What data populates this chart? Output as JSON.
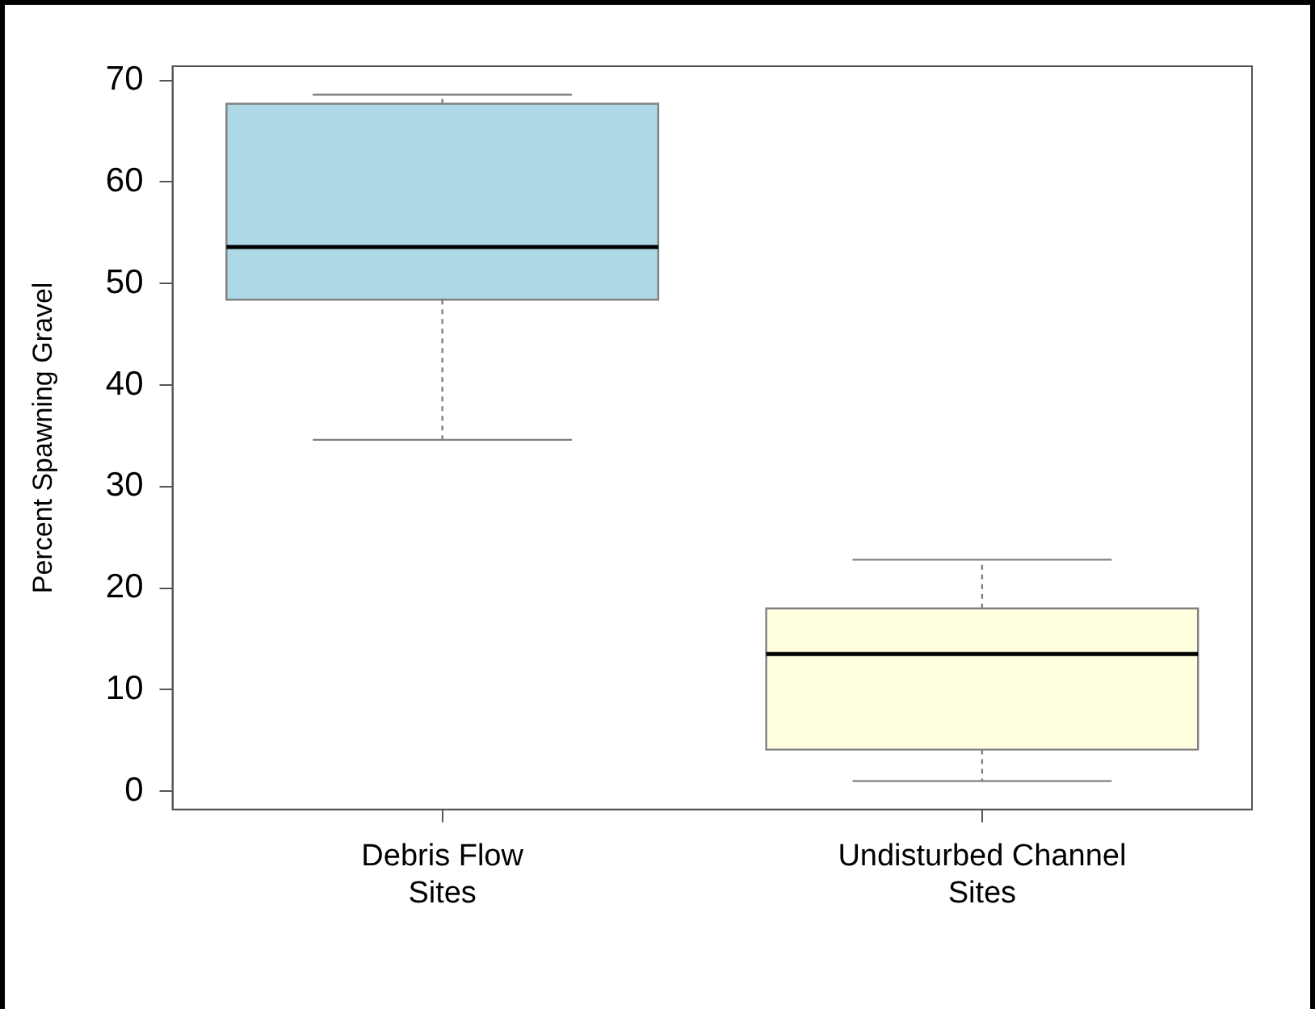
{
  "chart_data": {
    "type": "box",
    "ylabel": "Percent Spawning Gravel",
    "categories": [
      "Debris Flow Sites",
      "Undisturbed Channel Sites"
    ],
    "boxes": [
      {
        "low": 34.6,
        "q1": 48.4,
        "median": 53.6,
        "q3": 67.7,
        "high": 68.6
      },
      {
        "low": 1.0,
        "q1": 4.1,
        "median": 13.5,
        "q3": 18.0,
        "high": 22.8
      }
    ],
    "colors": [
      "#add8e6",
      "#ffffe0"
    ],
    "ylim": [
      -1.8,
      71.4
    ],
    "yticks": [
      0,
      10,
      20,
      30,
      40,
      50,
      60,
      70
    ]
  }
}
